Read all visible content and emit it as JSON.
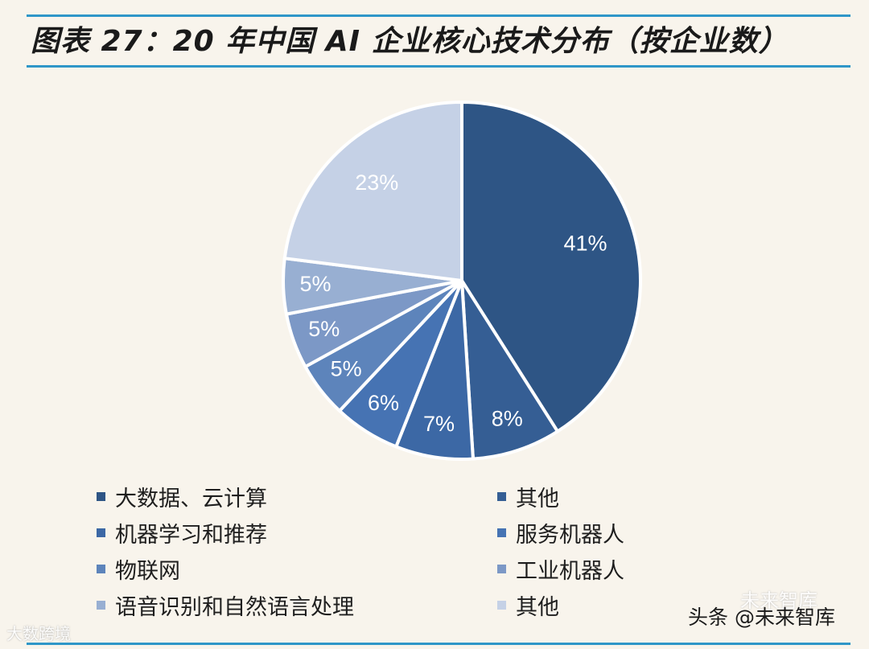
{
  "title": "图表 27：20 年中国 AI 企业核心技术分布（按企业数）",
  "chart_data": {
    "type": "pie",
    "title": "图表 27：20 年中国 AI 企业核心技术分布（按企业数）",
    "slices": [
      {
        "name": "大数据、云计算",
        "value": 41,
        "label": "41%",
        "color": "#2e5585"
      },
      {
        "name": "其他",
        "value": 8,
        "label": "8%",
        "color": "#355e94"
      },
      {
        "name": "机器学习和推荐",
        "value": 7,
        "label": "7%",
        "color": "#3c68a5"
      },
      {
        "name": "服务机器人",
        "value": 6,
        "label": "6%",
        "color": "#4673b3"
      },
      {
        "name": "物联网",
        "value": 5,
        "label": "5%",
        "color": "#5d84bb"
      },
      {
        "name": "工业机器人",
        "value": 5,
        "label": "5%",
        "color": "#7c98c6"
      },
      {
        "name": "语音识别和自然语言处理",
        "value": 5,
        "label": "5%",
        "color": "#98afd2"
      },
      {
        "name": "其他",
        "value": 23,
        "label": "23%",
        "color": "#c5d1e6"
      }
    ],
    "legend_placement": "bottom",
    "legend_order": [
      0,
      1,
      2,
      3,
      4,
      5,
      6,
      7
    ]
  },
  "watermarks": {
    "left": "大数跨境",
    "right": "头条 @未来智库",
    "faint": "未来智库"
  }
}
